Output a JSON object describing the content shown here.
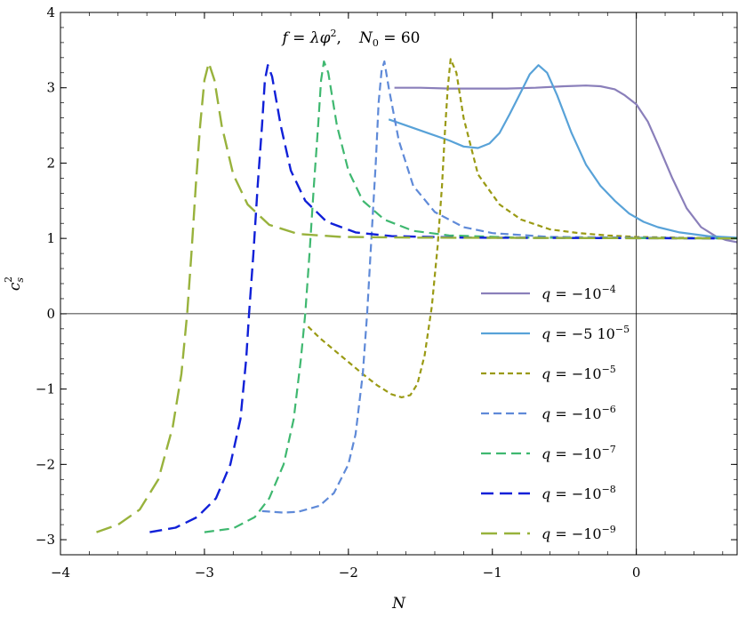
{
  "chart_data": {
    "type": "line",
    "title": "f = λφ², N₀ = 60",
    "title_parts": {
      "f": "f",
      "eq1": " = ",
      "lambda_phi": "λφ",
      "sq": "2",
      "comma": ",",
      "n0": "N",
      "n0_sub": "0",
      "n0_value": " = 60"
    },
    "xlabel": "N",
    "ylabel": "c",
    "ylabel_sub": "s",
    "ylabel_sup": "2",
    "xlim": [
      -4,
      0.7
    ],
    "ylim": [
      -3.2,
      4.0
    ],
    "x_ticks": [
      -4,
      -3,
      -2,
      -1,
      0
    ],
    "x_tick_labels": [
      "−4",
      "−3",
      "−2",
      "−1",
      "0"
    ],
    "y_ticks": [
      -3,
      -2,
      -1,
      0,
      1,
      2,
      3,
      4
    ],
    "y_tick_labels": [
      "−3",
      "−2",
      "−1",
      "0",
      "1",
      "2",
      "3",
      "4"
    ],
    "reference_lines": {
      "x": 0,
      "y": 0
    },
    "grid": false,
    "legend_position": "lower-right",
    "series": [
      {
        "name": "q = −10⁻⁴",
        "label_main": "q = −10",
        "label_exp": "−4",
        "color": "#8a7fba",
        "dash": "",
        "width": 2.2,
        "points": [
          [
            -1.68,
            3.0
          ],
          [
            -1.5,
            3.0
          ],
          [
            -1.3,
            2.99
          ],
          [
            -1.1,
            2.99
          ],
          [
            -0.9,
            2.99
          ],
          [
            -0.7,
            3.0
          ],
          [
            -0.5,
            3.02
          ],
          [
            -0.35,
            3.03
          ],
          [
            -0.25,
            3.02
          ],
          [
            -0.15,
            2.98
          ],
          [
            -0.08,
            2.9
          ],
          [
            0.0,
            2.78
          ],
          [
            0.08,
            2.55
          ],
          [
            0.15,
            2.25
          ],
          [
            0.25,
            1.8
          ],
          [
            0.35,
            1.4
          ],
          [
            0.45,
            1.15
          ],
          [
            0.55,
            1.03
          ],
          [
            0.62,
            0.98
          ],
          [
            0.7,
            0.95
          ]
        ]
      },
      {
        "name": "q = −5 10⁻⁵",
        "label_main": "q = −5 10",
        "label_exp": "−5",
        "color": "#58a2d8",
        "dash": "",
        "width": 2.2,
        "points": [
          [
            -1.72,
            2.58
          ],
          [
            -1.6,
            2.5
          ],
          [
            -1.45,
            2.4
          ],
          [
            -1.3,
            2.3
          ],
          [
            -1.2,
            2.22
          ],
          [
            -1.1,
            2.2
          ],
          [
            -1.02,
            2.26
          ],
          [
            -0.95,
            2.4
          ],
          [
            -0.88,
            2.65
          ],
          [
            -0.8,
            2.95
          ],
          [
            -0.74,
            3.18
          ],
          [
            -0.68,
            3.3
          ],
          [
            -0.62,
            3.2
          ],
          [
            -0.55,
            2.9
          ],
          [
            -0.45,
            2.4
          ],
          [
            -0.35,
            1.98
          ],
          [
            -0.25,
            1.7
          ],
          [
            -0.15,
            1.5
          ],
          [
            -0.05,
            1.33
          ],
          [
            0.05,
            1.22
          ],
          [
            0.15,
            1.15
          ],
          [
            0.3,
            1.08
          ],
          [
            0.5,
            1.03
          ],
          [
            0.7,
            1.01
          ]
        ]
      },
      {
        "name": "q = −10⁻⁵",
        "label_main": "q = −10",
        "label_exp": "−5",
        "color": "#9a9a14",
        "dash": "6,4",
        "width": 2.2,
        "points": [
          [
            -2.28,
            -0.17
          ],
          [
            -2.2,
            -0.32
          ],
          [
            -2.1,
            -0.48
          ],
          [
            -2.0,
            -0.64
          ],
          [
            -1.9,
            -0.8
          ],
          [
            -1.8,
            -0.95
          ],
          [
            -1.7,
            -1.07
          ],
          [
            -1.63,
            -1.11
          ],
          [
            -1.57,
            -1.08
          ],
          [
            -1.52,
            -0.93
          ],
          [
            -1.47,
            -0.55
          ],
          [
            -1.42,
            0.1
          ],
          [
            -1.38,
            0.9
          ],
          [
            -1.35,
            1.7
          ],
          [
            -1.33,
            2.4
          ],
          [
            -1.31,
            3.0
          ],
          [
            -1.29,
            3.38
          ],
          [
            -1.25,
            3.2
          ],
          [
            -1.2,
            2.6
          ],
          [
            -1.1,
            1.85
          ],
          [
            -0.95,
            1.45
          ],
          [
            -0.8,
            1.25
          ],
          [
            -0.6,
            1.12
          ],
          [
            -0.4,
            1.07
          ],
          [
            -0.2,
            1.04
          ],
          [
            0.0,
            1.02
          ],
          [
            0.3,
            1.01
          ],
          [
            0.7,
            1.0
          ]
        ]
      },
      {
        "name": "q = −10⁻⁶",
        "label_main": "q = −10",
        "label_exp": "−6",
        "color": "#5f8ad8",
        "dash": "9,5",
        "width": 2.2,
        "points": [
          [
            -2.6,
            -2.62
          ],
          [
            -2.45,
            -2.64
          ],
          [
            -2.35,
            -2.63
          ],
          [
            -2.2,
            -2.55
          ],
          [
            -2.1,
            -2.38
          ],
          [
            -2.0,
            -2.0
          ],
          [
            -1.95,
            -1.6
          ],
          [
            -1.9,
            -0.8
          ],
          [
            -1.87,
            0.0
          ],
          [
            -1.84,
            1.0
          ],
          [
            -1.81,
            2.0
          ],
          [
            -1.79,
            2.8
          ],
          [
            -1.77,
            3.22
          ],
          [
            -1.75,
            3.35
          ],
          [
            -1.72,
            3.0
          ],
          [
            -1.65,
            2.3
          ],
          [
            -1.55,
            1.7
          ],
          [
            -1.4,
            1.35
          ],
          [
            -1.2,
            1.15
          ],
          [
            -1.0,
            1.07
          ],
          [
            -0.6,
            1.02
          ],
          [
            0.0,
            1.01
          ],
          [
            0.7,
            1.0
          ]
        ]
      },
      {
        "name": "q = −10⁻⁷",
        "label_main": "q = −10",
        "label_exp": "−7",
        "color": "#3fb870",
        "dash": "11,6",
        "width": 2.2,
        "points": [
          [
            -3.0,
            -2.9
          ],
          [
            -2.8,
            -2.85
          ],
          [
            -2.65,
            -2.7
          ],
          [
            -2.55,
            -2.45
          ],
          [
            -2.45,
            -2.0
          ],
          [
            -2.38,
            -1.4
          ],
          [
            -2.33,
            -0.6
          ],
          [
            -2.3,
            0.0
          ],
          [
            -2.27,
            0.8
          ],
          [
            -2.24,
            1.7
          ],
          [
            -2.21,
            2.5
          ],
          [
            -2.19,
            3.1
          ],
          [
            -2.17,
            3.35
          ],
          [
            -2.14,
            3.2
          ],
          [
            -2.08,
            2.5
          ],
          [
            -2.0,
            1.9
          ],
          [
            -1.9,
            1.5
          ],
          [
            -1.75,
            1.25
          ],
          [
            -1.55,
            1.1
          ],
          [
            -1.3,
            1.04
          ],
          [
            -0.8,
            1.01
          ],
          [
            0.7,
            1.0
          ]
        ]
      },
      {
        "name": "q = −10⁻⁸",
        "label_main": "q = −10",
        "label_exp": "−8",
        "color": "#1020d8",
        "dash": "14,7",
        "width": 2.4,
        "points": [
          [
            -3.38,
            -2.9
          ],
          [
            -3.2,
            -2.84
          ],
          [
            -3.05,
            -2.7
          ],
          [
            -2.92,
            -2.45
          ],
          [
            -2.82,
            -2.0
          ],
          [
            -2.75,
            -1.4
          ],
          [
            -2.71,
            -0.6
          ],
          [
            -2.69,
            0.0
          ],
          [
            -2.66,
            0.8
          ],
          [
            -2.63,
            1.7
          ],
          [
            -2.6,
            2.5
          ],
          [
            -2.58,
            3.1
          ],
          [
            -2.56,
            3.3
          ],
          [
            -2.53,
            3.15
          ],
          [
            -2.47,
            2.5
          ],
          [
            -2.4,
            1.9
          ],
          [
            -2.3,
            1.5
          ],
          [
            -2.15,
            1.22
          ],
          [
            -1.95,
            1.08
          ],
          [
            -1.7,
            1.03
          ],
          [
            -1.2,
            1.01
          ],
          [
            0.7,
            1.0
          ]
        ]
      },
      {
        "name": "q = −10⁻⁹",
        "label_main": "q = −10",
        "label_exp": "−9",
        "color": "#98b23c",
        "dash": "18,8",
        "width": 2.4,
        "points": [
          [
            -3.75,
            -2.9
          ],
          [
            -3.6,
            -2.8
          ],
          [
            -3.45,
            -2.6
          ],
          [
            -3.32,
            -2.2
          ],
          [
            -3.22,
            -1.5
          ],
          [
            -3.16,
            -0.8
          ],
          [
            -3.12,
            0.0
          ],
          [
            -3.09,
            0.8
          ],
          [
            -3.06,
            1.7
          ],
          [
            -3.03,
            2.5
          ],
          [
            -3.0,
            3.1
          ],
          [
            -2.97,
            3.33
          ],
          [
            -2.93,
            3.1
          ],
          [
            -2.88,
            2.5
          ],
          [
            -2.8,
            1.85
          ],
          [
            -2.7,
            1.45
          ],
          [
            -2.55,
            1.18
          ],
          [
            -2.35,
            1.06
          ],
          [
            -2.05,
            1.02
          ],
          [
            -1.5,
            1.01
          ],
          [
            0.7,
            1.0
          ]
        ]
      }
    ]
  }
}
